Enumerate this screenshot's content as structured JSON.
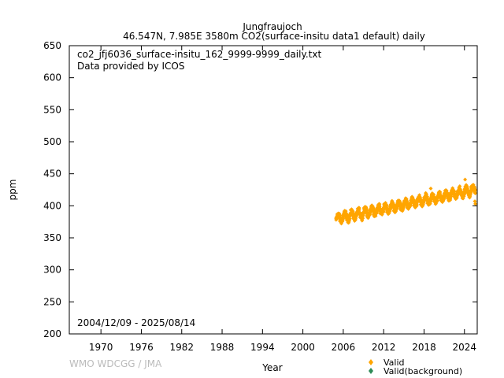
{
  "chart_data": {
    "type": "scatter",
    "title": "Jungfraujoch",
    "subtitle": "46.547N, 7.985E 3580m    CO2(surface-insitu data1 default) daily",
    "xlabel": "Year",
    "ylabel": "ppm",
    "xlim": [
      1965.3,
      2025.9
    ],
    "ylim": [
      200,
      650
    ],
    "x_ticks": [
      1970,
      1976,
      1982,
      1988,
      1994,
      2000,
      2006,
      2012,
      2018,
      2024
    ],
    "y_ticks": [
      200,
      250,
      300,
      350,
      400,
      450,
      500,
      550,
      600,
      650
    ],
    "annotations": [
      "co2_jfj6036_surface-insitu_162_9999-9999_daily.txt",
      "Data provided by ICOS"
    ],
    "period": "2004/12/09 - 2025/08/14",
    "credit": "WMO WDCGG / JMA",
    "legend_position": "bottom-right",
    "grid": false,
    "series": [
      {
        "name": "Valid",
        "color": "#FFA500",
        "marker": "diamond",
        "trend": {
          "start_year": 2004.94,
          "end_year": 2025.62,
          "start_value": 380,
          "end_value": 425,
          "seasonal_amplitude": 6,
          "daily_scatter": 4
        },
        "x": [
          2004.94,
          2005.5,
          2006.0,
          2006.5,
          2007.0,
          2007.5,
          2008.0,
          2008.5,
          2009.0,
          2009.5,
          2010.0,
          2010.5,
          2011.0,
          2011.5,
          2012.0,
          2012.5,
          2013.0,
          2013.5,
          2014.0,
          2014.5,
          2015.0,
          2015.5,
          2016.0,
          2016.5,
          2017.0,
          2017.5,
          2018.0,
          2018.5,
          2019.0,
          2019.5,
          2020.0,
          2020.5,
          2021.0,
          2021.5,
          2022.0,
          2022.5,
          2023.0,
          2023.5,
          2024.0,
          2024.5,
          2025.0,
          2025.5,
          2025.62
        ],
        "y": [
          380,
          376,
          384,
          378,
          386,
          380,
          388,
          382,
          390,
          384,
          392,
          386,
          394,
          388,
          396,
          390,
          398,
          392,
          400,
          394,
          402,
          397,
          405,
          400,
          408,
          402,
          410,
          404,
          412,
          407,
          415,
          409,
          417,
          412,
          419,
          414,
          422,
          417,
          426,
          421,
          430,
          424,
          420
        ]
      },
      {
        "name": "Valid(background)",
        "color": "#2e8b57",
        "marker": "diamond",
        "x": [],
        "y": []
      }
    ]
  }
}
